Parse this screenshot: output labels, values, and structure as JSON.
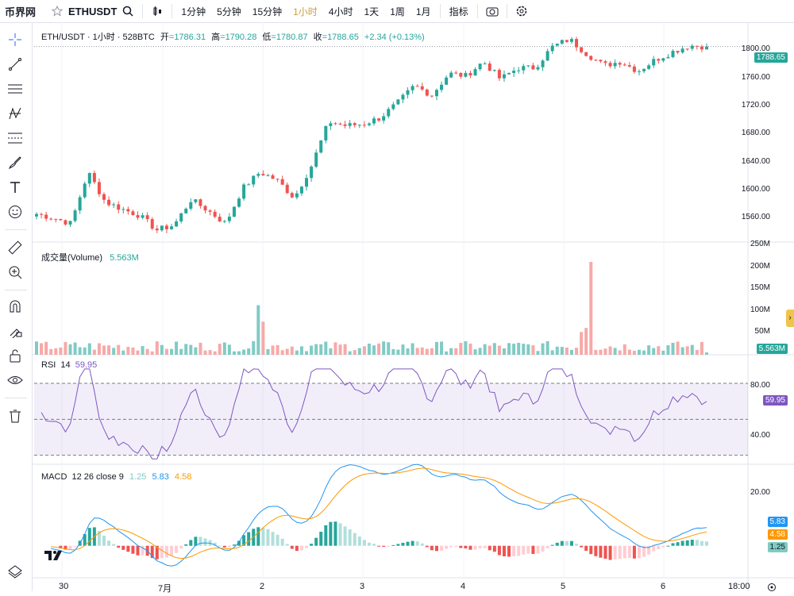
{
  "toolbar": {
    "logo": "币界网",
    "symbol": "ETHUSDT",
    "intervals": [
      "1分钟",
      "5分钟",
      "15分钟",
      "1小时",
      "4小时",
      "1天",
      "1周",
      "1月"
    ],
    "active_interval": "1小时",
    "indicators_label": "指标",
    "icons": [
      "star-icon",
      "search-icon",
      "candle-type-icon",
      "camera-icon",
      "settings-icon"
    ]
  },
  "left_tools": [
    "crosshair-icon",
    "trendline-icon",
    "horizontal-lines-icon",
    "pattern-icon",
    "fib-icon",
    "brush-icon",
    "text-icon",
    "emoji-icon",
    "ruler-icon",
    "zoom-in-icon",
    "magnet-icon",
    "lock-drawing-icon",
    "unlock-icon",
    "eye-icon",
    "trash-icon",
    "layers-icon"
  ],
  "price_pane": {
    "title": "ETH/USDT · 1小时 · 528BTC",
    "o_label": "开",
    "o": "=1786.31",
    "h_label": "高",
    "h": "=1790.28",
    "l_label": "低",
    "l": "=1780.87",
    "c_label": "收",
    "c": "=1788.65",
    "change": "+2.34 (+0.13%)",
    "last_price": "1788.65",
    "ticks": [
      "1800.00",
      "1760.00",
      "1720.00",
      "1680.00",
      "1640.00",
      "1600.00",
      "1560.00"
    ]
  },
  "volume_pane": {
    "label": "成交量(Volume)",
    "value": "5.563M",
    "ticks": [
      "250M",
      "200M",
      "150M",
      "100M",
      "50M"
    ],
    "last": "5.563M"
  },
  "rsi_pane": {
    "label": "RSI",
    "period": "14",
    "value": "59.95",
    "ticks": [
      "80.00",
      "40.00"
    ],
    "last": "59.95"
  },
  "macd_pane": {
    "label": "MACD",
    "params": "12 26 close 9",
    "hist": "1.25",
    "macd": "5.83",
    "signal": "4.58",
    "ticks": [
      "20.00"
    ],
    "tags": [
      "5.83",
      "4.58",
      "1.25"
    ]
  },
  "x_axis": [
    "30",
    "7月",
    "2",
    "3",
    "4",
    "5",
    "6",
    "18:00"
  ],
  "colors": {
    "up": "#26a69a",
    "down": "#ef5350",
    "accent": "#c9a03a",
    "rsi": "#7e57c2",
    "macd": "#2196f3",
    "signal": "#ff9800"
  },
  "chart_data": {
    "type": "candlestick",
    "title": "ETH/USDT · 1小时 · 528BTC",
    "x": [
      "30",
      "7月",
      "2",
      "3",
      "4",
      "5",
      "6",
      "18:00"
    ],
    "price_close_approx": [
      1580,
      1575,
      1568,
      1632,
      1595,
      1586,
      1578,
      1560,
      1566,
      1598,
      1584,
      1568,
      1612,
      1632,
      1622,
      1600,
      1640,
      1695,
      1690,
      1692,
      1700,
      1718,
      1740,
      1728,
      1755,
      1752,
      1770,
      1748,
      1762,
      1762,
      1788,
      1798,
      1780,
      1765,
      1770,
      1758,
      1772,
      1782,
      1790,
      1788.65
    ],
    "ylim": [
      1545,
      1815
    ],
    "volume_ylim": [
      0,
      250
    ],
    "rsi_ylim": [
      25,
      85
    ],
    "macd_ylim": [
      -10,
      25
    ]
  }
}
